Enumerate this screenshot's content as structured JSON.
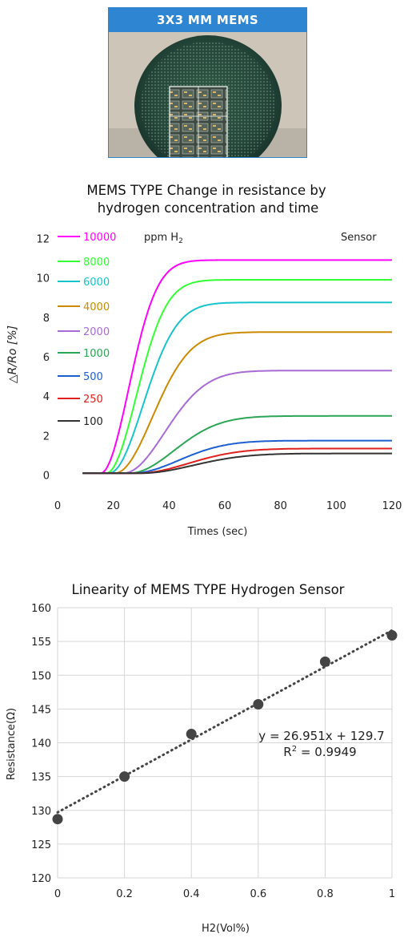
{
  "photo": {
    "banner": "3X3 MM MEMS",
    "icon": "mems-wafer-photo"
  },
  "chart_data": [
    {
      "type": "line",
      "title_lines": [
        "MEMS TYPE Change in resistance by",
        "hydrogen concentration and time"
      ],
      "xlabel": "Times (sec)",
      "ylabel": "△R/Ro [%]",
      "xlim": [
        0,
        120
      ],
      "ylim": [
        -0.5,
        12.5
      ],
      "xticks": [
        0,
        20,
        40,
        60,
        80,
        100,
        120
      ],
      "yticks": [
        0,
        2,
        4,
        6,
        8,
        10,
        12
      ],
      "grid": false,
      "legend_position": "top-left",
      "unit_label": "ppm H",
      "unit_subscript": "2",
      "annotation": "Sensor",
      "series": [
        {
          "name": "10000",
          "color": "#ff00ff",
          "start": 15,
          "final": 10.9,
          "tau": 15
        },
        {
          "name": "8000",
          "color": "#33ff33",
          "start": 17,
          "final": 9.9,
          "tau": 16
        },
        {
          "name": "6000",
          "color": "#18c4cc",
          "start": 18,
          "final": 8.75,
          "tau": 18
        },
        {
          "name": "4000",
          "color": "#cc8a00",
          "start": 20,
          "final": 7.25,
          "tau": 20
        },
        {
          "name": "2000",
          "color": "#a86bd6",
          "start": 23,
          "final": 5.3,
          "tau": 22
        },
        {
          "name": "1000",
          "color": "#2aa655",
          "start": 25,
          "final": 3.0,
          "tau": 24
        },
        {
          "name": "500",
          "color": "#1e5fd0",
          "start": 26,
          "final": 1.75,
          "tau": 25
        },
        {
          "name": "250",
          "color": "#e0201e",
          "start": 28,
          "final": 1.35,
          "tau": 27
        },
        {
          "name": "100",
          "color": "#333333",
          "start": 29,
          "final": 1.1,
          "tau": 28
        }
      ],
      "baseline": 0.1,
      "x_start": 9
    },
    {
      "type": "scatter",
      "title": "Linearity of MEMS TYPE Hydrogen Sensor",
      "xlabel": "H2(Vol%)",
      "ylabel": "Resistance(Ω)",
      "xlim": [
        0,
        1
      ],
      "ylim": [
        120,
        160
      ],
      "xticks": [
        "0",
        "0.2",
        "0.4",
        "0.6",
        "0.8",
        "1"
      ],
      "yticks": [
        "120",
        "125",
        "130",
        "135",
        "140",
        "145",
        "150",
        "155",
        "160"
      ],
      "grid": true,
      "points": [
        {
          "x": 0,
          "y": 128.7
        },
        {
          "x": 0.2,
          "y": 135.0
        },
        {
          "x": 0.4,
          "y": 141.3
        },
        {
          "x": 0.6,
          "y": 145.7
        },
        {
          "x": 0.8,
          "y": 152.0
        },
        {
          "x": 1.0,
          "y": 155.9
        }
      ],
      "trendline": {
        "slope": 26.951,
        "intercept": 129.7
      },
      "equation": "y = 26.951x + 129.7",
      "r_squared_label": "R",
      "r_squared_sup": "2",
      "r_squared_value": " = 0.9949",
      "point_color": "#444444"
    }
  ]
}
